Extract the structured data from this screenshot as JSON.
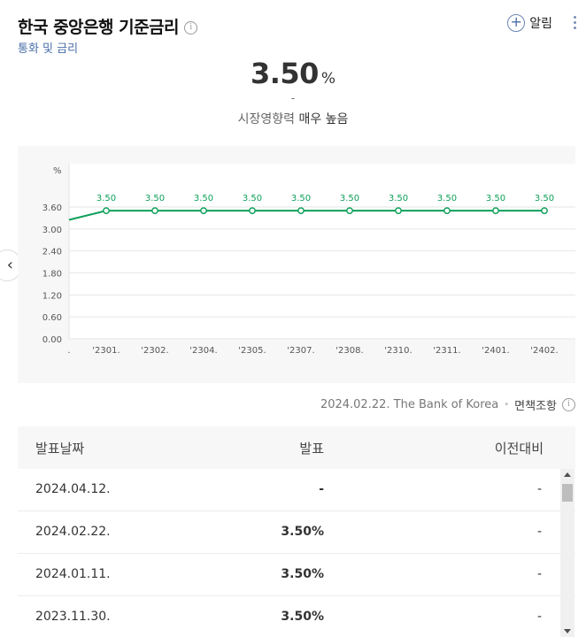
{
  "header": {
    "title": "한국 중앙은행 기준금리",
    "info_icon": "info-icon",
    "subtitle": "통화 및 금리",
    "alarm_label": "알림",
    "alarm_icon": "plus-circle-icon",
    "more_icon": "more-vertical-icon"
  },
  "summary": {
    "value": "3.50",
    "unit": "%",
    "change": "-",
    "impact_label": "시장영향력",
    "impact_value": "매우 높음"
  },
  "nav": {
    "prev_icon": "chevron-left-icon"
  },
  "chart_data": {
    "type": "line",
    "unit_label": "%",
    "categories": [
      ".",
      "'2301.",
      "'2302.",
      "'2304.",
      "'2305.",
      "'2307.",
      "'2308.",
      "'2310.",
      "'2311.",
      "'2401.",
      "'2402."
    ],
    "values": [
      3.25,
      3.5,
      3.5,
      3.5,
      3.5,
      3.5,
      3.5,
      3.5,
      3.5,
      3.5,
      3.5
    ],
    "data_labels": [
      "",
      "3.50",
      "3.50",
      "3.50",
      "3.50",
      "3.50",
      "3.50",
      "3.50",
      "3.50",
      "3.50",
      "3.50"
    ],
    "y_ticks": [
      "0.00",
      "0.60",
      "1.20",
      "1.80",
      "2.40",
      "3.00",
      "3.60"
    ],
    "ylim": [
      0,
      3.6
    ],
    "line_color": "#0fa05a",
    "grid": true
  },
  "source": {
    "text": "2024.02.22. The Bank of Korea",
    "disclaimer": "면책조항",
    "disclaimer_icon": "info-icon"
  },
  "table": {
    "headers": [
      "발표날짜",
      "발표",
      "이전대비"
    ],
    "rows": [
      [
        "2024.04.12.",
        "-",
        "-"
      ],
      [
        "2024.02.22.",
        "3.50%",
        "-"
      ],
      [
        "2024.01.11.",
        "3.50%",
        "-"
      ],
      [
        "2023.11.30.",
        "3.50%",
        "-"
      ]
    ]
  }
}
